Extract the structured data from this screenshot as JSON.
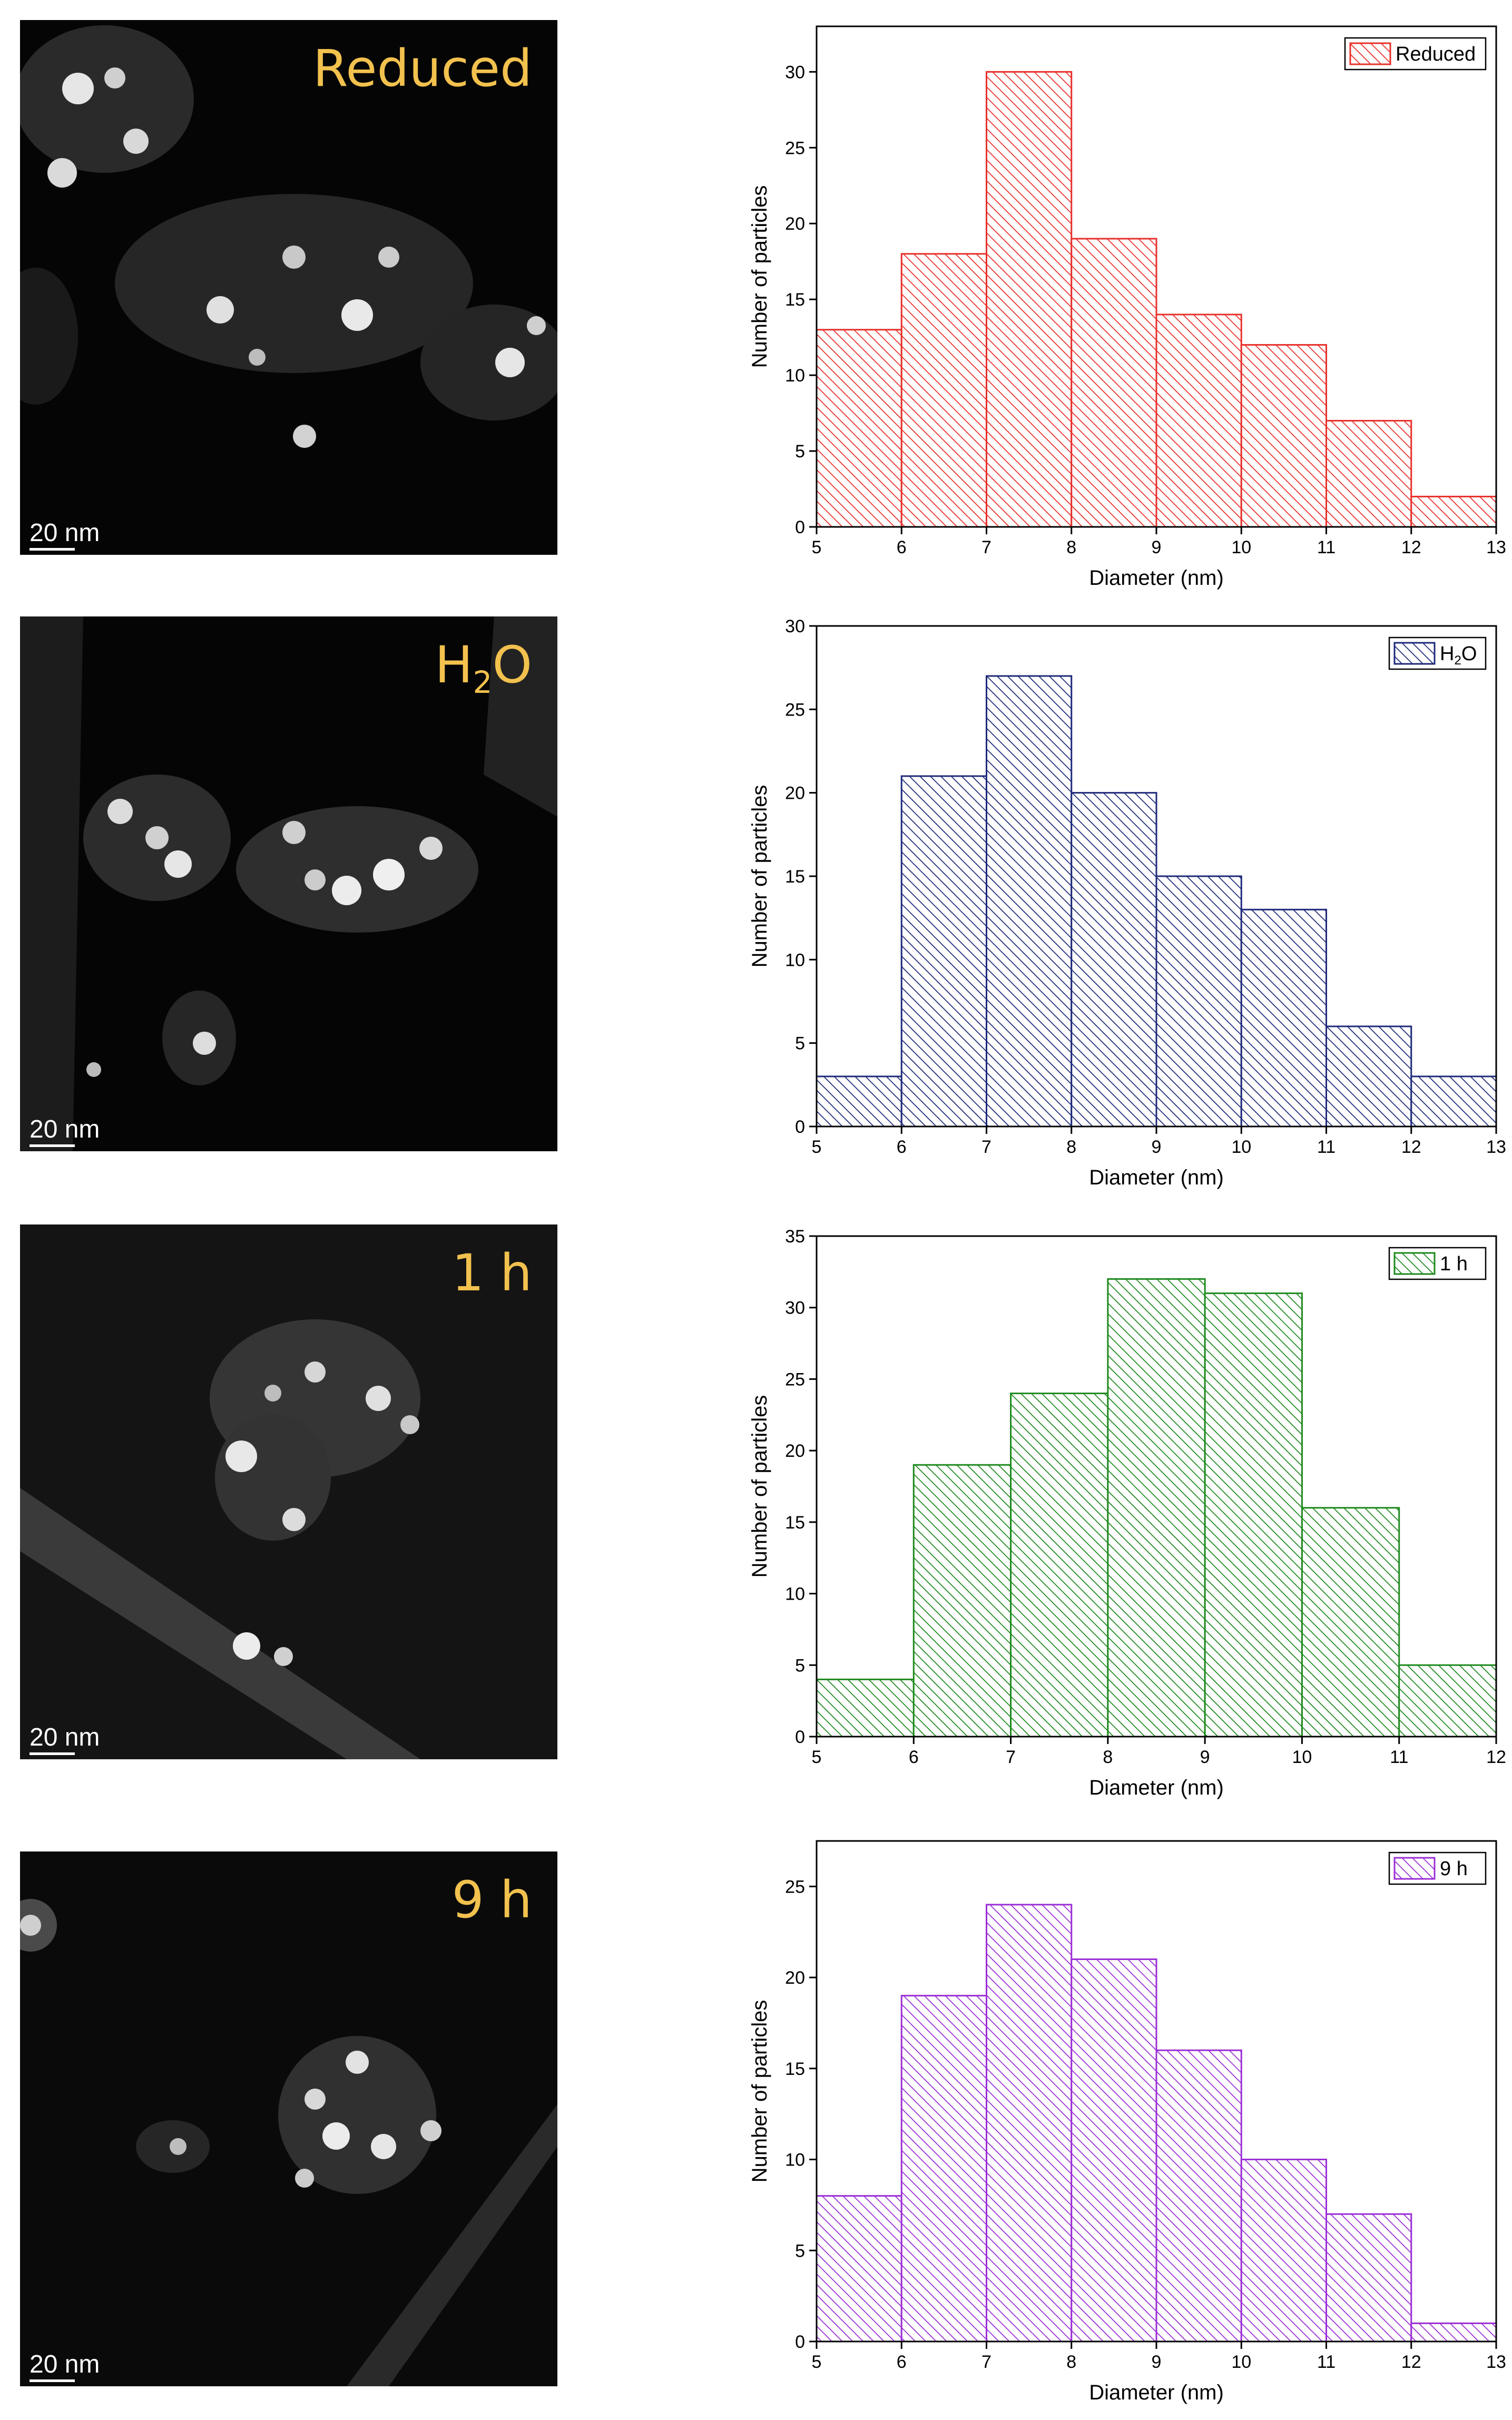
{
  "panels": [
    {
      "image_label": "Reduced",
      "scale_label": "20 nm",
      "chart_data": {
        "type": "bar",
        "subtype": "histogram",
        "series_name": "Reduced",
        "color": "#e8302b",
        "bin_edges": [
          5,
          6,
          7,
          8,
          9,
          10,
          11,
          12,
          13
        ],
        "values": [
          13,
          18,
          30,
          19,
          14,
          12,
          7,
          2
        ],
        "xlabel": "Diameter (nm)",
        "ylabel": "Number of particles",
        "xlim": [
          5,
          13
        ],
        "ylim": [
          0,
          33
        ],
        "xticks": [
          5,
          6,
          7,
          8,
          9,
          10,
          11,
          12,
          13
        ],
        "yticks": [
          0,
          5,
          10,
          15,
          20,
          25,
          30
        ],
        "legend": "top-right"
      }
    },
    {
      "image_label": "H2O",
      "scale_label": "20 nm",
      "chart_data": {
        "type": "bar",
        "subtype": "histogram",
        "series_name": "H2O",
        "color": "#1f2a7a",
        "bin_edges": [
          5,
          6,
          7,
          8,
          9,
          10,
          11,
          12,
          13
        ],
        "values": [
          3,
          21,
          27,
          20,
          15,
          13,
          6,
          3
        ],
        "xlabel": "Diameter (nm)",
        "ylabel": "Number of particles",
        "xlim": [
          5,
          13
        ],
        "ylim": [
          0,
          30
        ],
        "xticks": [
          5,
          6,
          7,
          8,
          9,
          10,
          11,
          12,
          13
        ],
        "yticks": [
          0,
          5,
          10,
          15,
          20,
          25,
          30
        ],
        "legend": "top-right"
      }
    },
    {
      "image_label": "1 h",
      "scale_label": "20 nm",
      "chart_data": {
        "type": "bar",
        "subtype": "histogram",
        "series_name": "1 h",
        "color": "#1f8a1f",
        "bin_edges": [
          5,
          6,
          7,
          8,
          9,
          10,
          11,
          12
        ],
        "values": [
          4,
          19,
          24,
          32,
          31,
          16,
          5
        ],
        "xlabel": "Diameter (nm)",
        "ylabel": "Number of particles",
        "xlim": [
          5,
          12
        ],
        "ylim": [
          0,
          35
        ],
        "xticks": [
          5,
          6,
          7,
          8,
          9,
          10,
          11,
          12
        ],
        "yticks": [
          0,
          5,
          10,
          15,
          20,
          25,
          30,
          35
        ],
        "legend": "top-right"
      }
    },
    {
      "image_label": "9 h",
      "scale_label": "20 nm",
      "chart_data": {
        "type": "bar",
        "subtype": "histogram",
        "series_name": "9 h",
        "color": "#9b2fd6",
        "bin_edges": [
          5,
          6,
          7,
          8,
          9,
          10,
          11,
          12,
          13
        ],
        "values": [
          8,
          19,
          24,
          21,
          16,
          10,
          7,
          1
        ],
        "xlabel": "Diameter (nm)",
        "ylabel": "Number of particles",
        "xlim": [
          5,
          13
        ],
        "ylim": [
          0,
          27.5
        ],
        "xticks": [
          5,
          6,
          7,
          8,
          9,
          10,
          11,
          12,
          13
        ],
        "yticks": [
          0,
          5,
          10,
          15,
          20,
          25
        ],
        "legend": "top-right"
      }
    }
  ]
}
